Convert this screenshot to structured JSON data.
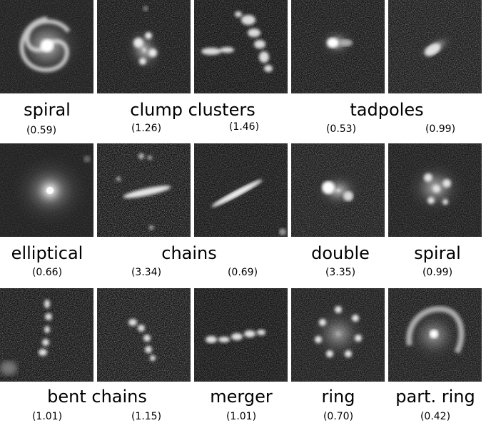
{
  "rows": [
    {
      "tiles": [
        {
          "name": "spiral-galaxy"
        },
        {
          "name": "clump-cluster-galaxy-1"
        },
        {
          "name": "clump-cluster-galaxy-2"
        },
        {
          "name": "tadpole-galaxy-1"
        },
        {
          "name": "tadpole-galaxy-2"
        }
      ],
      "labels": [
        "spiral",
        "clump clusters",
        "tadpoles"
      ],
      "values": [
        "(0.59)",
        "(1.26)",
        "(1.46)",
        "(0.53)",
        "(0.99)"
      ]
    },
    {
      "tiles": [
        {
          "name": "elliptical-galaxy"
        },
        {
          "name": "chain-galaxy-1"
        },
        {
          "name": "chain-galaxy-2"
        },
        {
          "name": "double-galaxy"
        },
        {
          "name": "spiral-galaxy-2"
        }
      ],
      "labels": [
        "elliptical",
        "chains",
        "double",
        "spiral"
      ],
      "values": [
        "(0.66)",
        "(3.34)",
        "(0.69)",
        "(3.35)",
        "(0.99)"
      ]
    },
    {
      "tiles": [
        {
          "name": "bent-chain-galaxy-1"
        },
        {
          "name": "bent-chain-galaxy-2"
        },
        {
          "name": "merger-galaxy"
        },
        {
          "name": "ring-galaxy"
        },
        {
          "name": "partial-ring-galaxy"
        }
      ],
      "labels": [
        "bent chains",
        "merger",
        "ring",
        "part. ring"
      ],
      "values": [
        "(1.01)",
        "(1.15)",
        "(1.01)",
        "(0.70)",
        "(0.42)"
      ]
    }
  ]
}
